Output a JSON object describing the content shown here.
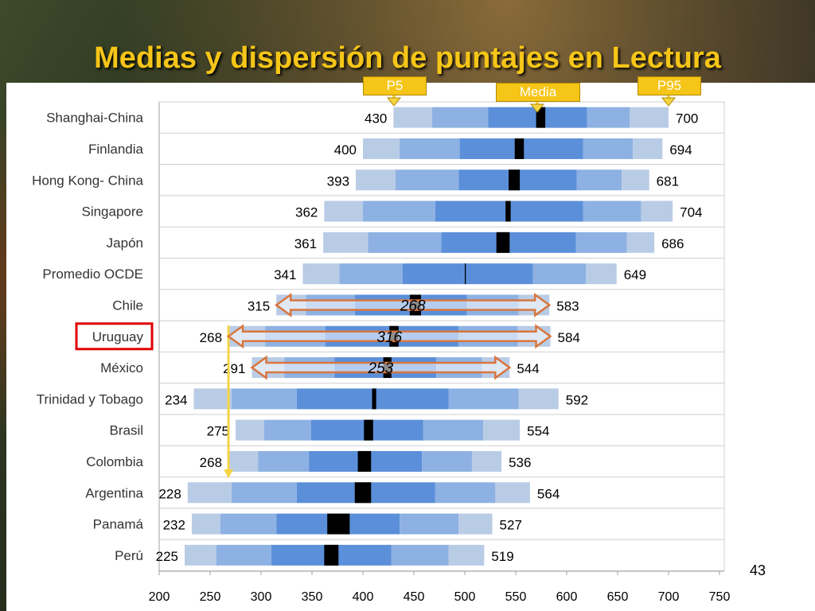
{
  "slide": {
    "title": "Medias y dispersión de puntajes en Lectura",
    "page_number": "43"
  },
  "markers": {
    "p5": "P5",
    "media": "Media",
    "p95": "P95"
  },
  "colors": {
    "outer": "#b9cce6",
    "mid": "#8db1e2",
    "inner": "#5b8fd9",
    "mean": "#000000",
    "highlight": "#e00000",
    "arrow": "#f4a578",
    "arrow_border": "#d9763f",
    "guide": "#f5d442"
  },
  "chart_data": {
    "type": "bar",
    "subtype": "horizontal-percentile-bands",
    "title": "Medias y dispersión de puntajes en Lectura",
    "xlim": [
      200,
      750
    ],
    "xticks": [
      "200",
      "250",
      "300",
      "350",
      "400",
      "450",
      "500",
      "550",
      "600",
      "650",
      "700",
      "750"
    ],
    "highlight_country": "Uruguay",
    "countries": [
      {
        "name": "Shanghai-China",
        "p5": 430,
        "p10": 468,
        "p25": 523,
        "mean_lo": 570,
        "mean_hi": 579,
        "p75": 620,
        "p90": 662,
        "p95": 700,
        "p5_label": "430",
        "p95_label": "700"
      },
      {
        "name": "Finlandia",
        "p5": 400,
        "p10": 436,
        "p25": 495,
        "mean_lo": 549,
        "mean_hi": 558,
        "p75": 616,
        "p90": 665,
        "p95": 694,
        "p5_label": "400",
        "p95_label": "694"
      },
      {
        "name": "Hong Kong- China",
        "p5": 393,
        "p10": 432,
        "p25": 494,
        "mean_lo": 543,
        "mean_hi": 554,
        "p75": 610,
        "p90": 654,
        "p95": 681,
        "p5_label": "393",
        "p95_label": "681"
      },
      {
        "name": "Singapore",
        "p5": 362,
        "p10": 400,
        "p25": 471,
        "mean_lo": 540,
        "mean_hi": 545,
        "p75": 616,
        "p90": 673,
        "p95": 704,
        "p5_label": "362",
        "p95_label": "704"
      },
      {
        "name": "Japón",
        "p5": 361,
        "p10": 405,
        "p25": 477,
        "mean_lo": 531,
        "mean_hi": 544,
        "p75": 609,
        "p90": 659,
        "p95": 686,
        "p5_label": "361",
        "p95_label": "686"
      },
      {
        "name": "Promedio OCDE",
        "p5": 341,
        "p10": 377,
        "p25": 439,
        "mean_lo": 500,
        "mean_hi": 501,
        "p75": 567,
        "p90": 619,
        "p95": 649,
        "p5_label": "341",
        "p95_label": "649"
      },
      {
        "name": "Chile",
        "p5": 315,
        "p10": 344,
        "p25": 392,
        "mean_lo": 446,
        "mean_hi": 457,
        "p75": 502,
        "p90": 553,
        "p95": 583,
        "p5_label": "315",
        "p95_label": "583"
      },
      {
        "name": "Uruguay",
        "p5": 268,
        "p10": 304,
        "p25": 363,
        "mean_lo": 426,
        "mean_hi": 435,
        "p75": 494,
        "p90": 552,
        "p95": 584,
        "p5_label": "268",
        "p95_label": "584"
      },
      {
        "name": "México",
        "p5": 291,
        "p10": 323,
        "p25": 372,
        "mean_lo": 420,
        "mean_hi": 428,
        "p75": 472,
        "p90": 517,
        "p95": 544,
        "p5_label": "291",
        "p95_label": "544"
      },
      {
        "name": "Trinidad y Tobago",
        "p5": 234,
        "p10": 271,
        "p25": 335,
        "mean_lo": 409,
        "mean_hi": 413,
        "p75": 484,
        "p90": 553,
        "p95": 592,
        "p5_label": "234",
        "p95_label": "592"
      },
      {
        "name": "Brasil",
        "p5": 275,
        "p10": 303,
        "p25": 349,
        "mean_lo": 401,
        "mean_hi": 410,
        "p75": 459,
        "p90": 518,
        "p95": 554,
        "p5_label": "275",
        "p95_label": "554"
      },
      {
        "name": "Colombia",
        "p5": 268,
        "p10": 297,
        "p25": 347,
        "mean_lo": 395,
        "mean_hi": 408,
        "p75": 458,
        "p90": 507,
        "p95": 536,
        "p5_label": "268",
        "p95_label": "536"
      },
      {
        "name": "Argentina",
        "p5": 228,
        "p10": 271,
        "p25": 335,
        "mean_lo": 392,
        "mean_hi": 408,
        "p75": 471,
        "p90": 530,
        "p95": 564,
        "p5_label": "228",
        "p95_label": "564"
      },
      {
        "name": "Panamá",
        "p5": 232,
        "p10": 260,
        "p25": 315,
        "mean_lo": 365,
        "mean_hi": 387,
        "p75": 436,
        "p90": 494,
        "p95": 527,
        "p5_label": "232",
        "p95_label": "527"
      },
      {
        "name": "Perú",
        "p5": 225,
        "p10": 256,
        "p25": 310,
        "mean_lo": 362,
        "mean_hi": 376,
        "p75": 428,
        "p90": 484,
        "p95": 519,
        "p5_label": "225",
        "p95_label": "519"
      }
    ],
    "range_annotations": [
      {
        "country": "Chile",
        "from": 315,
        "to": 583,
        "label": "268"
      },
      {
        "country": "Uruguay",
        "from": 268,
        "to": 584,
        "label": "316"
      },
      {
        "country": "México",
        "from": 291,
        "to": 544,
        "label": "253"
      }
    ]
  }
}
